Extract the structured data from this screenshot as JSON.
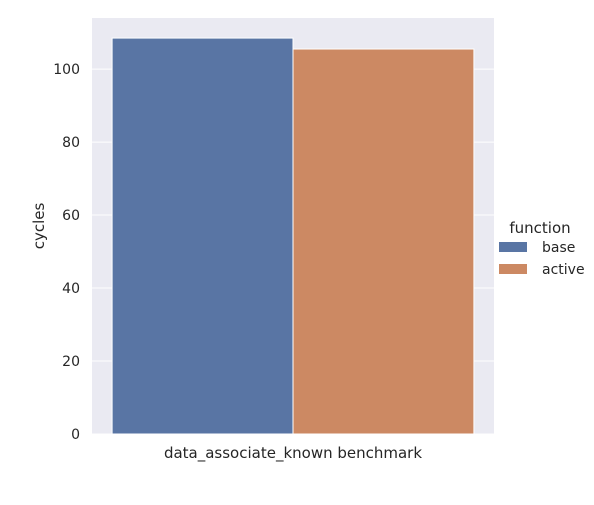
{
  "chart_data": {
    "type": "bar",
    "title": "",
    "xlabel": "data_associate_known benchmark",
    "ylabel": "cycles",
    "categories": [
      ""
    ],
    "series": [
      {
        "name": "base",
        "values": [
          108.5
        ],
        "color": "#5975a4"
      },
      {
        "name": "active",
        "values": [
          105.5
        ],
        "color": "#cc8963"
      }
    ],
    "ylim": [
      0,
      114
    ],
    "yticks": [
      0,
      20,
      40,
      60,
      80,
      100
    ],
    "grid": true,
    "background": "#eaeaf2",
    "legend": {
      "title": "function",
      "placement": "right"
    }
  }
}
